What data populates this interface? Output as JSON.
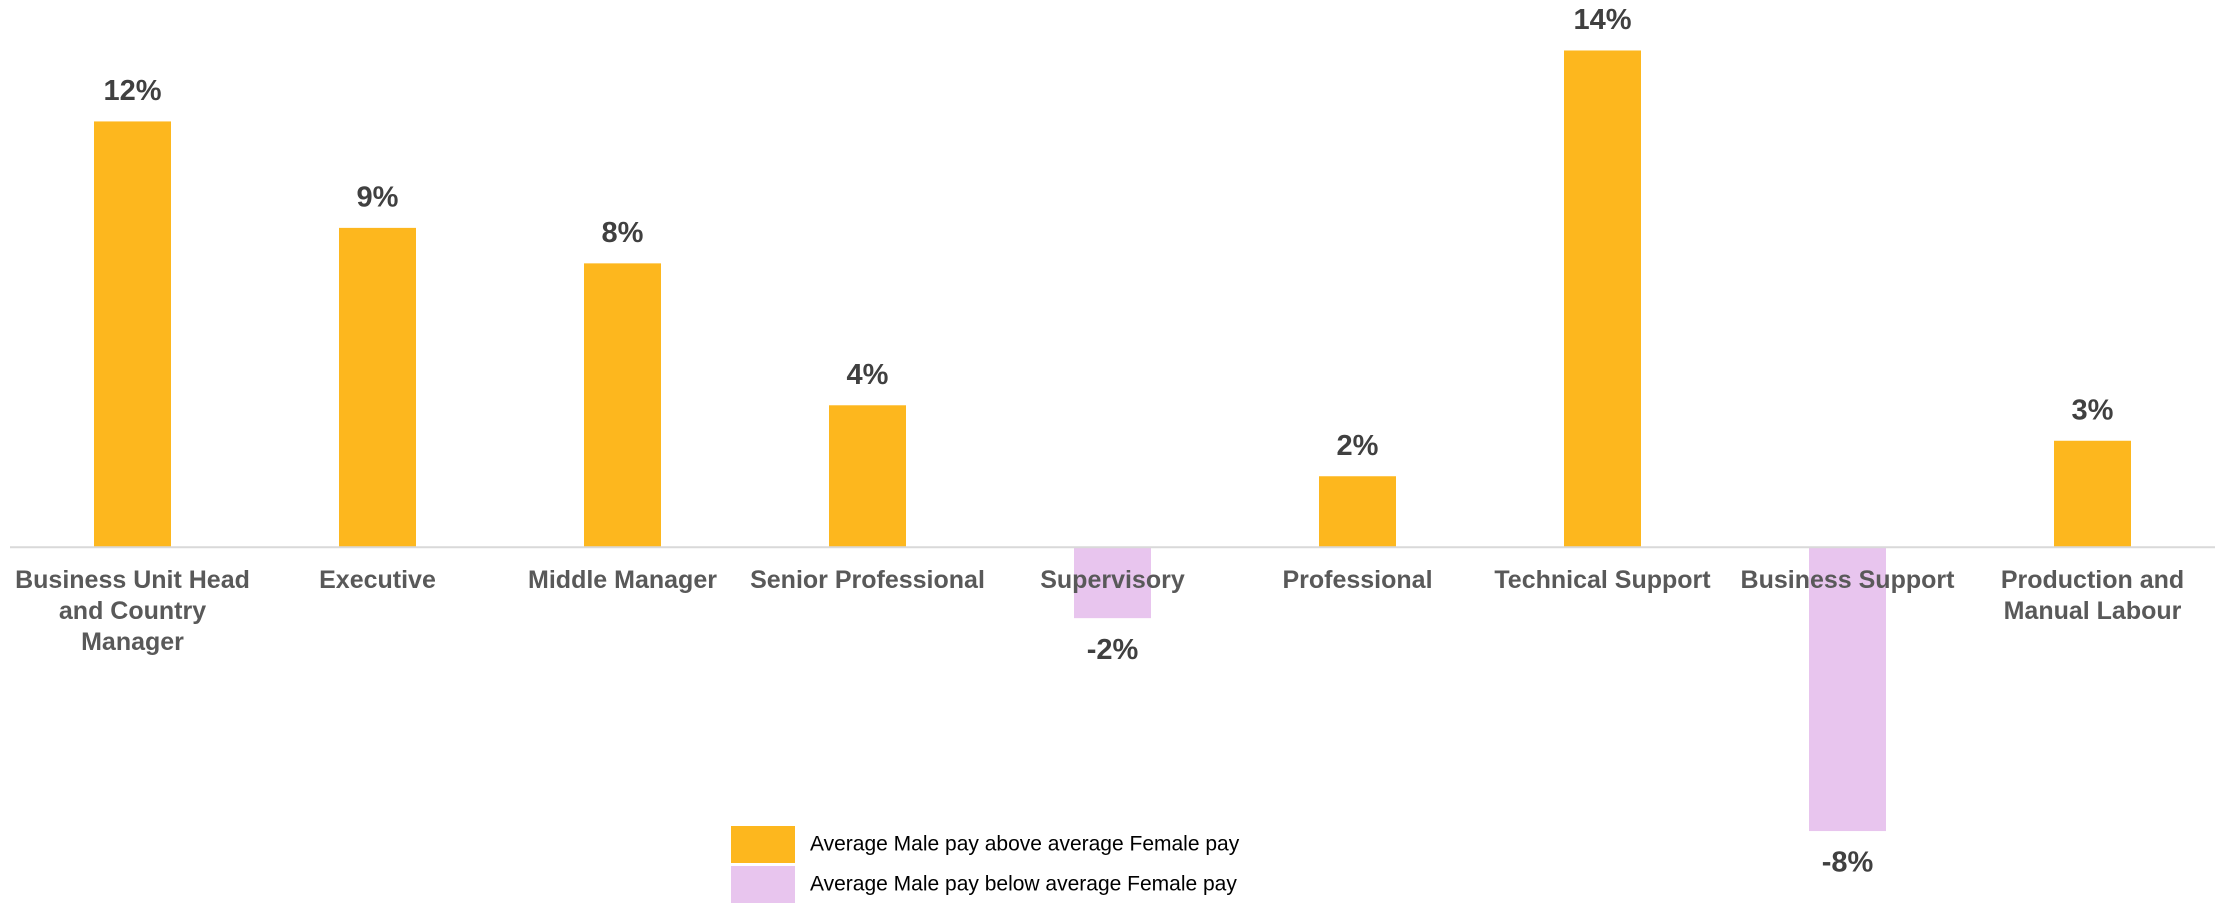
{
  "chart_data": {
    "type": "bar",
    "categories": [
      "Business Unit Head and Country Manager",
      "Executive",
      "Middle Manager",
      "Senior Professional",
      "Supervisory",
      "Professional",
      "Technical Support",
      "Business Support",
      "Production and Manual Labour"
    ],
    "series": [
      {
        "name": "Average Male pay above average Female pay",
        "color": "#FDB71E",
        "values": [
          12,
          9,
          8,
          4,
          null,
          2,
          14,
          null,
          3
        ],
        "value_labels": [
          "12%",
          "9%",
          "8%",
          "4%",
          null,
          "2%",
          "14%",
          null,
          "3%"
        ]
      },
      {
        "name": "Average Male pay below average Female pay",
        "color": "#E8C5EE",
        "values": [
          null,
          null,
          null,
          null,
          -2,
          null,
          null,
          -8,
          null
        ],
        "value_labels": [
          null,
          null,
          null,
          null,
          "-2%",
          null,
          null,
          "-8%",
          null
        ]
      }
    ],
    "ylim": [
      -10,
      15
    ]
  }
}
